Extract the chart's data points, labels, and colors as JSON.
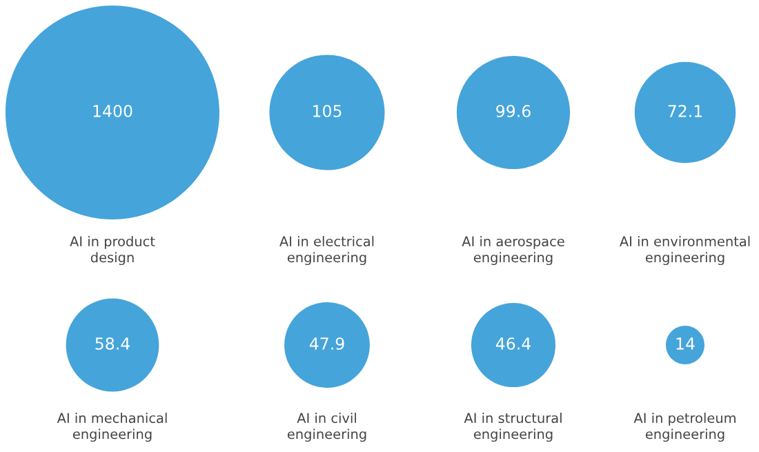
{
  "chart_data": {
    "type": "other",
    "categories": [
      "AI in product design",
      "AI in electrical engineering",
      "AI in aerospace engineering",
      "AI in environmental engineering",
      "AI in mechanical engineering",
      "AI in civil engineering",
      "AI in structural engineering",
      "AI in petroleum engineering"
    ],
    "values": [
      1400,
      105,
      99.6,
      72.1,
      58.4,
      47.9,
      46.4,
      14
    ],
    "color": "#45a4da",
    "data_labels": true
  }
}
